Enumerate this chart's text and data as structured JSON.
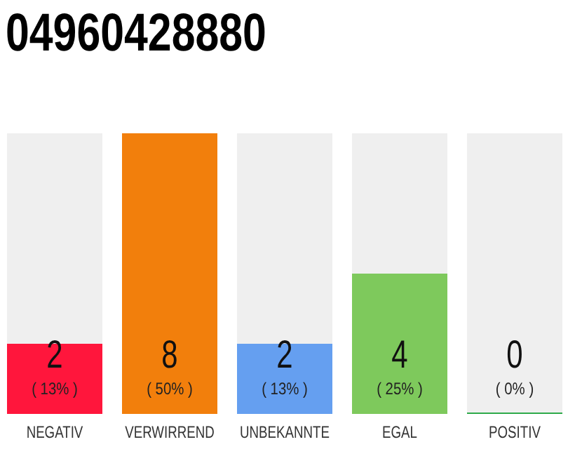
{
  "chart_data": {
    "type": "bar",
    "title": "04960428880",
    "categories": [
      "NEGATIV",
      "VERWIRREND",
      "UNBEKANNTE",
      "EGAL",
      "POSITIV"
    ],
    "values": [
      2,
      8,
      2,
      4,
      0
    ],
    "colors": [
      "#ff163c",
      "#f27f0c",
      "#659ff0",
      "#7ec95c",
      "#2eaa4a"
    ],
    "value_labels": [
      "2",
      "8",
      "2",
      "4",
      "0"
    ],
    "annotations": [
      "( 13% )",
      "( 50% )",
      "( 13% )",
      "( 25% )",
      "( 0% )"
    ]
  }
}
